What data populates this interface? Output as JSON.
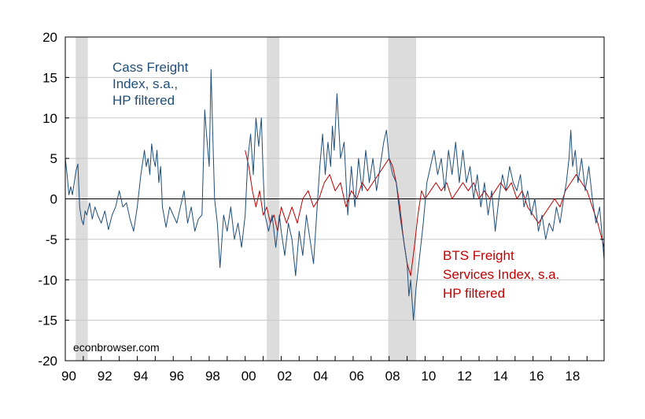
{
  "chart_data": {
    "type": "line",
    "title": "",
    "xlabel": "",
    "ylabel": "",
    "xlim": [
      1990.0,
      2019.95
    ],
    "ylim": [
      -20,
      20
    ],
    "yticks": [
      -20,
      -15,
      -10,
      -5,
      0,
      5,
      10,
      15,
      20
    ],
    "xticks": [
      {
        "year": 1990,
        "label": "90"
      },
      {
        "year": 1992,
        "label": "92"
      },
      {
        "year": 1994,
        "label": "94"
      },
      {
        "year": 1996,
        "label": "96"
      },
      {
        "year": 1998,
        "label": "98"
      },
      {
        "year": 2000,
        "label": "00"
      },
      {
        "year": 2002,
        "label": "02"
      },
      {
        "year": 2004,
        "label": "04"
      },
      {
        "year": 2006,
        "label": "06"
      },
      {
        "year": 2008,
        "label": "08"
      },
      {
        "year": 2010,
        "label": "10"
      },
      {
        "year": 2012,
        "label": "12"
      },
      {
        "year": 2014,
        "label": "14"
      },
      {
        "year": 2016,
        "label": "16"
      },
      {
        "year": 2018,
        "label": "18"
      }
    ],
    "grid": true,
    "recessions": [
      [
        1990.58,
        1991.25
      ],
      [
        2001.2,
        2001.9
      ],
      [
        2007.95,
        2009.5
      ]
    ],
    "series": [
      {
        "name": "cass",
        "label": [
          "Cass Freight",
          "Index, s.a.,",
          "HP filtered"
        ],
        "color": "#1f4e79",
        "x": [
          1990.0,
          1990.1,
          1990.2,
          1990.3,
          1990.4,
          1990.5,
          1990.6,
          1990.7,
          1990.8,
          1990.9,
          1991.0,
          1991.1,
          1991.2,
          1991.35,
          1991.5,
          1991.65,
          1991.8,
          1992.0,
          1992.2,
          1992.4,
          1992.6,
          1992.8,
          1993.0,
          1993.2,
          1993.4,
          1993.6,
          1993.8,
          1994.0,
          1994.2,
          1994.4,
          1994.5,
          1994.6,
          1994.7,
          1994.8,
          1994.9,
          1995.0,
          1995.1,
          1995.2,
          1995.3,
          1995.4,
          1995.6,
          1995.8,
          1996.0,
          1996.2,
          1996.4,
          1996.6,
          1996.8,
          1997.0,
          1997.2,
          1997.4,
          1997.6,
          1997.75,
          1997.85,
          1998.0,
          1998.1,
          1998.2,
          1998.3,
          1998.45,
          1998.6,
          1998.8,
          1999.0,
          1999.2,
          1999.4,
          1999.6,
          1999.8,
          2000.0,
          2000.15,
          2000.3,
          2000.45,
          2000.6,
          2000.75,
          2000.9,
          2001.0,
          2001.1,
          2001.3,
          2001.5,
          2001.7,
          2001.9,
          2002.0,
          2002.2,
          2002.4,
          2002.6,
          2002.8,
          2003.0,
          2003.2,
          2003.4,
          2003.6,
          2003.8,
          2004.0,
          2004.15,
          2004.3,
          2004.45,
          2004.6,
          2004.75,
          2004.85,
          2004.95,
          2005.1,
          2005.3,
          2005.5,
          2005.7,
          2005.9,
          2006.1,
          2006.3,
          2006.5,
          2006.7,
          2006.9,
          2007.1,
          2007.3,
          2007.5,
          2007.7,
          2007.85,
          2008.0,
          2008.2,
          2008.4,
          2008.6,
          2008.8,
          2009.0,
          2009.1,
          2009.2,
          2009.35,
          2009.5,
          2009.7,
          2009.9,
          2010.1,
          2010.3,
          2010.5,
          2010.7,
          2010.9,
          2011.1,
          2011.3,
          2011.5,
          2011.7,
          2011.9,
          2012.1,
          2012.3,
          2012.5,
          2012.7,
          2012.9,
          2013.1,
          2013.3,
          2013.5,
          2013.7,
          2013.9,
          2014.1,
          2014.3,
          2014.5,
          2014.7,
          2014.9,
          2015.1,
          2015.3,
          2015.5,
          2015.7,
          2015.9,
          2016.1,
          2016.3,
          2016.5,
          2016.7,
          2016.9,
          2017.1,
          2017.3,
          2017.5,
          2017.7,
          2017.85,
          2018.0,
          2018.1,
          2018.2,
          2018.35,
          2018.5,
          2018.7,
          2018.9,
          2019.1,
          2019.3,
          2019.5,
          2019.7,
          2019.95
        ],
        "values": [
          5.0,
          3.0,
          0.5,
          1.5,
          0.5,
          2.0,
          3.5,
          4.3,
          -1.0,
          -2.5,
          -3.2,
          -1.5,
          -2.0,
          -0.5,
          -2.5,
          -1.0,
          -2.0,
          -3.0,
          -1.5,
          -3.8,
          -2.0,
          -1.0,
          1.0,
          -1.0,
          -0.5,
          -2.5,
          -4.0,
          -1.0,
          3.0,
          6.0,
          4.0,
          5.0,
          3.0,
          6.8,
          5.0,
          4.0,
          6.0,
          2.0,
          4.0,
          -1.0,
          -3.5,
          -1.0,
          -2.0,
          -3.0,
          -1.0,
          1.0,
          -3.0,
          -1.0,
          -4.0,
          -2.5,
          -2.0,
          11.0,
          8.0,
          4.0,
          16.0,
          8.0,
          0.0,
          -3.0,
          -8.5,
          -2.0,
          -4.0,
          -1.0,
          -5.0,
          -3.0,
          -6.0,
          -2.0,
          5.0,
          8.0,
          3.0,
          10.0,
          6.5,
          10.0,
          3.0,
          -2.0,
          -4.0,
          -2.0,
          -6.0,
          -2.0,
          -4.0,
          -7.0,
          -3.0,
          -5.0,
          -9.5,
          -4.0,
          -7.0,
          -2.0,
          -5.0,
          -8.0,
          -1.0,
          4.0,
          8.0,
          3.0,
          7.0,
          4.0,
          9.0,
          6.0,
          13.0,
          5.0,
          7.0,
          -2.0,
          4.0,
          -1.0,
          5.0,
          1.0,
          6.0,
          2.0,
          5.0,
          1.0,
          4.0,
          7.0,
          8.5,
          5.0,
          3.0,
          2.0,
          -2.0,
          -5.0,
          -8.0,
          -12.0,
          -10.0,
          -15.0,
          -11.0,
          -7.0,
          -3.0,
          2.0,
          4.0,
          6.0,
          3.0,
          5.0,
          1.0,
          6.0,
          3.0,
          7.0,
          2.0,
          6.0,
          2.0,
          4.0,
          0.0,
          3.0,
          -1.0,
          2.0,
          -2.0,
          1.0,
          -4.0,
          0.0,
          3.0,
          1.0,
          4.0,
          2.0,
          1.0,
          3.0,
          -1.0,
          1.0,
          -2.0,
          0.0,
          -4.0,
          -2.0,
          -5.0,
          -3.0,
          -4.0,
          -1.0,
          -3.0,
          0.0,
          2.0,
          5.0,
          8.5,
          4.0,
          6.0,
          2.0,
          5.0,
          1.0,
          4.0,
          0.0,
          -3.0,
          -1.0,
          -7.5
        ]
      },
      {
        "name": "bts",
        "label": [
          "BTS Freight",
          "Services Index, s.a.",
          "HP filtered"
        ],
        "color": "#c00000",
        "x": [
          2000.0,
          2000.2,
          2000.4,
          2000.6,
          2000.8,
          2001.0,
          2001.2,
          2001.4,
          2001.6,
          2001.8,
          2002.0,
          2002.3,
          2002.6,
          2002.9,
          2003.2,
          2003.5,
          2003.8,
          2004.1,
          2004.4,
          2004.7,
          2005.0,
          2005.3,
          2005.6,
          2005.9,
          2006.2,
          2006.5,
          2006.8,
          2007.1,
          2007.4,
          2007.7,
          2008.0,
          2008.2,
          2008.4,
          2008.6,
          2008.8,
          2009.0,
          2009.2,
          2009.4,
          2009.6,
          2009.8,
          2010.0,
          2010.3,
          2010.6,
          2010.9,
          2011.2,
          2011.5,
          2011.8,
          2012.1,
          2012.4,
          2012.7,
          2013.0,
          2013.3,
          2013.6,
          2013.9,
          2014.2,
          2014.5,
          2014.8,
          2015.1,
          2015.4,
          2015.7,
          2016.0,
          2016.3,
          2016.6,
          2016.9,
          2017.2,
          2017.5,
          2017.8,
          2018.1,
          2018.4,
          2018.7,
          2019.0,
          2019.3,
          2019.6,
          2019.95
        ],
        "values": [
          6.0,
          4.0,
          1.0,
          -1.0,
          1.0,
          -2.0,
          -1.0,
          -3.0,
          -2.0,
          -4.0,
          -1.0,
          -3.0,
          -1.0,
          -3.0,
          0.0,
          1.0,
          -1.0,
          0.0,
          2.0,
          3.0,
          1.0,
          2.0,
          -1.0,
          1.0,
          0.0,
          2.0,
          1.0,
          2.0,
          3.0,
          4.0,
          5.0,
          4.0,
          2.0,
          -1.0,
          -5.0,
          -8.0,
          -9.5,
          -6.0,
          -2.0,
          1.0,
          0.0,
          1.0,
          2.0,
          1.0,
          2.0,
          0.0,
          1.0,
          2.0,
          1.0,
          2.0,
          0.0,
          1.0,
          0.0,
          1.0,
          2.0,
          1.0,
          2.0,
          0.0,
          1.0,
          -1.0,
          -2.0,
          -3.0,
          -2.0,
          -1.0,
          0.0,
          -1.0,
          1.0,
          2.0,
          3.0,
          2.0,
          1.0,
          -1.0,
          -3.0,
          -6.0
        ]
      }
    ],
    "annotations": {
      "credit": "econbrowser.com"
    }
  }
}
